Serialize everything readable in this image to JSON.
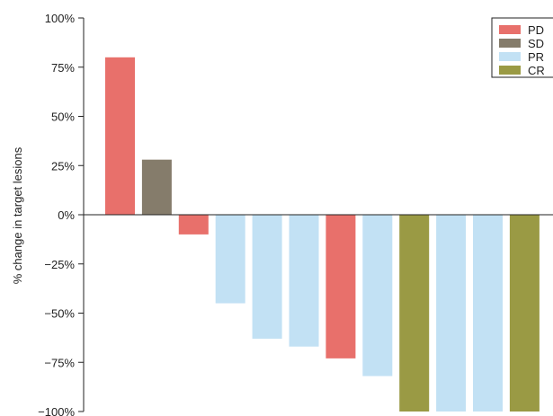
{
  "chart_data": {
    "type": "bar",
    "ylabel": "% change in target lesions",
    "xlabel": "",
    "ylim": [
      -100,
      100
    ],
    "yticks": [
      100,
      75,
      50,
      25,
      0,
      -25,
      -50,
      -75,
      -100
    ],
    "ytick_labels": [
      "100%",
      "75%",
      "50%",
      "25%",
      "0%",
      "−25%",
      "−50%",
      "−75%",
      "−100%"
    ],
    "legend": {
      "position": "top-right",
      "entries": [
        {
          "label": "PD",
          "color": "#e8706b"
        },
        {
          "label": "SD",
          "color": "#857c6b"
        },
        {
          "label": "PR",
          "color": "#c2e1f4"
        },
        {
          "label": "CR",
          "color": "#9a9a44"
        }
      ]
    },
    "bars": [
      {
        "value": 80,
        "response": "PD"
      },
      {
        "value": 28,
        "response": "SD"
      },
      {
        "value": -10,
        "response": "PD"
      },
      {
        "value": -45,
        "response": "PR"
      },
      {
        "value": -63,
        "response": "PR"
      },
      {
        "value": -67,
        "response": "PR"
      },
      {
        "value": -73,
        "response": "PD"
      },
      {
        "value": -82,
        "response": "PR"
      },
      {
        "value": -100,
        "response": "CR"
      },
      {
        "value": -100,
        "response": "PR"
      },
      {
        "value": -100,
        "response": "PR"
      },
      {
        "value": -100,
        "response": "CR"
      }
    ]
  }
}
